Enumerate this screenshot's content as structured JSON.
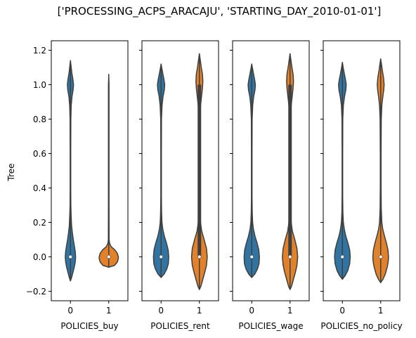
{
  "chart_data": {
    "title": "['PROCESSING_ACPS_ARACAJU', 'STARTING_DAY_2010-01-01']",
    "type": "violin",
    "ylabel": "Tree",
    "ylim": [
      -0.255,
      1.255
    ],
    "yticks": [
      {
        "value": -0.2,
        "label": "−0.2"
      },
      {
        "value": 0.0,
        "label": "0.0"
      },
      {
        "value": 0.2,
        "label": "0.2"
      },
      {
        "value": 0.4,
        "label": "0.4"
      },
      {
        "value": 0.6,
        "label": "0.6"
      },
      {
        "value": 0.8,
        "label": "0.8"
      },
      {
        "value": 1.0,
        "label": "1.0"
      },
      {
        "value": 1.2,
        "label": "1.2"
      }
    ],
    "categories": [
      "0",
      "1"
    ],
    "colors": {
      "0": "#3274a1",
      "1": "#e1812c"
    },
    "grid": false,
    "panels": [
      {
        "xlabel": "POLICIES_buy",
        "violins": [
          {
            "category": "0",
            "min": -0.14,
            "max": 1.14,
            "median": 0.0,
            "q1": 0.0,
            "q3": 0.0,
            "profile": [
              [
                -0.14,
                0
              ],
              [
                -0.12,
                0.06
              ],
              [
                -0.09,
                0.13
              ],
              [
                -0.06,
                0.2
              ],
              [
                -0.03,
                0.25
              ],
              [
                0.0,
                0.27
              ],
              [
                0.03,
                0.25
              ],
              [
                0.06,
                0.21
              ],
              [
                0.1,
                0.15
              ],
              [
                0.14,
                0.1
              ],
              [
                0.18,
                0.06
              ],
              [
                0.24,
                0.035
              ],
              [
                0.3,
                0.02
              ],
              [
                0.4,
                0.015
              ],
              [
                0.6,
                0.015
              ],
              [
                0.8,
                0.02
              ],
              [
                0.88,
                0.04
              ],
              [
                0.93,
                0.08
              ],
              [
                0.97,
                0.14
              ],
              [
                1.0,
                0.16
              ],
              [
                1.03,
                0.13
              ],
              [
                1.07,
                0.07
              ],
              [
                1.11,
                0.03
              ],
              [
                1.14,
                0
              ]
            ]
          },
          {
            "category": "1",
            "min": -0.06,
            "max": 1.06,
            "median": 0.0,
            "q1": 0.0,
            "q3": 0.0,
            "profile": [
              [
                -0.06,
                0
              ],
              [
                -0.05,
                0.3
              ],
              [
                -0.03,
                0.45
              ],
              [
                -0.01,
                0.5
              ],
              [
                0.0,
                0.5
              ],
              [
                0.02,
                0.45
              ],
              [
                0.04,
                0.32
              ],
              [
                0.06,
                0.12
              ],
              [
                0.08,
                0.04
              ],
              [
                0.1,
                0.02
              ],
              [
                0.3,
                0.015
              ],
              [
                1.0,
                0.015
              ],
              [
                1.06,
                0
              ]
            ]
          }
        ]
      },
      {
        "xlabel": "POLICIES_rent",
        "violins": [
          {
            "category": "0",
            "min": -0.12,
            "max": 1.12,
            "median": 0.0,
            "q1": 0.0,
            "q3": 0.0,
            "profile": [
              [
                -0.12,
                0
              ],
              [
                -0.1,
                0.16
              ],
              [
                -0.07,
                0.3
              ],
              [
                -0.04,
                0.38
              ],
              [
                0.0,
                0.4
              ],
              [
                0.04,
                0.37
              ],
              [
                0.08,
                0.28
              ],
              [
                0.12,
                0.17
              ],
              [
                0.16,
                0.09
              ],
              [
                0.2,
                0.045
              ],
              [
                0.26,
                0.025
              ],
              [
                0.35,
                0.015
              ],
              [
                0.6,
                0.015
              ],
              [
                0.8,
                0.02
              ],
              [
                0.88,
                0.05
              ],
              [
                0.93,
                0.1
              ],
              [
                0.97,
                0.17
              ],
              [
                1.0,
                0.19
              ],
              [
                1.03,
                0.15
              ],
              [
                1.07,
                0.08
              ],
              [
                1.1,
                0.03
              ],
              [
                1.12,
                0
              ]
            ]
          },
          {
            "category": "1",
            "min": -0.19,
            "max": 1.18,
            "median": 0.0,
            "q1": 0.0,
            "q3": 1.0,
            "profile": [
              [
                -0.19,
                0
              ],
              [
                -0.17,
                0.08
              ],
              [
                -0.13,
                0.18
              ],
              [
                -0.09,
                0.28
              ],
              [
                -0.05,
                0.37
              ],
              [
                0.0,
                0.41
              ],
              [
                0.05,
                0.37
              ],
              [
                0.1,
                0.25
              ],
              [
                0.15,
                0.12
              ],
              [
                0.2,
                0.06
              ],
              [
                0.3,
                0.03
              ],
              [
                0.5,
                0.025
              ],
              [
                0.8,
                0.03
              ],
              [
                0.88,
                0.06
              ],
              [
                0.94,
                0.12
              ],
              [
                0.98,
                0.16
              ],
              [
                1.02,
                0.18
              ],
              [
                1.06,
                0.16
              ],
              [
                1.1,
                0.1
              ],
              [
                1.14,
                0.05
              ],
              [
                1.18,
                0
              ]
            ]
          }
        ]
      },
      {
        "xlabel": "POLICIES_wage",
        "violins": [
          {
            "category": "0",
            "min": -0.12,
            "max": 1.12,
            "median": 0.0,
            "q1": 0.0,
            "q3": 0.0,
            "profile": [
              [
                -0.12,
                0
              ],
              [
                -0.1,
                0.16
              ],
              [
                -0.07,
                0.3
              ],
              [
                -0.04,
                0.38
              ],
              [
                0.0,
                0.4
              ],
              [
                0.04,
                0.37
              ],
              [
                0.08,
                0.28
              ],
              [
                0.12,
                0.17
              ],
              [
                0.16,
                0.09
              ],
              [
                0.2,
                0.045
              ],
              [
                0.26,
                0.025
              ],
              [
                0.35,
                0.015
              ],
              [
                0.6,
                0.015
              ],
              [
                0.8,
                0.02
              ],
              [
                0.88,
                0.05
              ],
              [
                0.93,
                0.1
              ],
              [
                0.97,
                0.17
              ],
              [
                1.0,
                0.19
              ],
              [
                1.03,
                0.15
              ],
              [
                1.07,
                0.08
              ],
              [
                1.1,
                0.03
              ],
              [
                1.12,
                0
              ]
            ]
          },
          {
            "category": "1",
            "min": -0.19,
            "max": 1.18,
            "median": 0.0,
            "q1": 0.0,
            "q3": 1.0,
            "profile": [
              [
                -0.19,
                0
              ],
              [
                -0.17,
                0.08
              ],
              [
                -0.13,
                0.18
              ],
              [
                -0.09,
                0.28
              ],
              [
                -0.05,
                0.36
              ],
              [
                0.0,
                0.4
              ],
              [
                0.05,
                0.36
              ],
              [
                0.1,
                0.25
              ],
              [
                0.15,
                0.12
              ],
              [
                0.2,
                0.06
              ],
              [
                0.3,
                0.03
              ],
              [
                0.5,
                0.025
              ],
              [
                0.8,
                0.03
              ],
              [
                0.88,
                0.06
              ],
              [
                0.94,
                0.12
              ],
              [
                0.98,
                0.16
              ],
              [
                1.02,
                0.18
              ],
              [
                1.06,
                0.16
              ],
              [
                1.1,
                0.1
              ],
              [
                1.14,
                0.05
              ],
              [
                1.18,
                0
              ]
            ]
          }
        ]
      },
      {
        "xlabel": "POLICIES_no_policy",
        "violins": [
          {
            "category": "0",
            "min": -0.13,
            "max": 1.13,
            "median": 0.0,
            "q1": 0.0,
            "q3": 0.0,
            "profile": [
              [
                -0.13,
                0
              ],
              [
                -0.11,
                0.14
              ],
              [
                -0.08,
                0.28
              ],
              [
                -0.04,
                0.38
              ],
              [
                0.0,
                0.41
              ],
              [
                0.04,
                0.38
              ],
              [
                0.08,
                0.29
              ],
              [
                0.12,
                0.18
              ],
              [
                0.16,
                0.1
              ],
              [
                0.2,
                0.05
              ],
              [
                0.26,
                0.025
              ],
              [
                0.35,
                0.015
              ],
              [
                0.6,
                0.015
              ],
              [
                0.8,
                0.02
              ],
              [
                0.88,
                0.05
              ],
              [
                0.93,
                0.11
              ],
              [
                0.97,
                0.18
              ],
              [
                1.0,
                0.2
              ],
              [
                1.03,
                0.16
              ],
              [
                1.07,
                0.09
              ],
              [
                1.1,
                0.04
              ],
              [
                1.13,
                0
              ]
            ]
          },
          {
            "category": "1",
            "min": -0.15,
            "max": 1.15,
            "median": 0.0,
            "q1": 0.0,
            "q3": 0.0,
            "profile": [
              [
                -0.15,
                0
              ],
              [
                -0.13,
                0.12
              ],
              [
                -0.1,
                0.24
              ],
              [
                -0.06,
                0.34
              ],
              [
                -0.03,
                0.39
              ],
              [
                0.0,
                0.41
              ],
              [
                0.04,
                0.38
              ],
              [
                0.08,
                0.3
              ],
              [
                0.12,
                0.2
              ],
              [
                0.16,
                0.11
              ],
              [
                0.2,
                0.06
              ],
              [
                0.28,
                0.03
              ],
              [
                0.4,
                0.02
              ],
              [
                0.6,
                0.02
              ],
              [
                0.8,
                0.03
              ],
              [
                0.88,
                0.06
              ],
              [
                0.93,
                0.11
              ],
              [
                0.97,
                0.16
              ],
              [
                1.0,
                0.18
              ],
              [
                1.04,
                0.15
              ],
              [
                1.08,
                0.09
              ],
              [
                1.12,
                0.04
              ],
              [
                1.15,
                0
              ]
            ]
          }
        ]
      }
    ]
  }
}
